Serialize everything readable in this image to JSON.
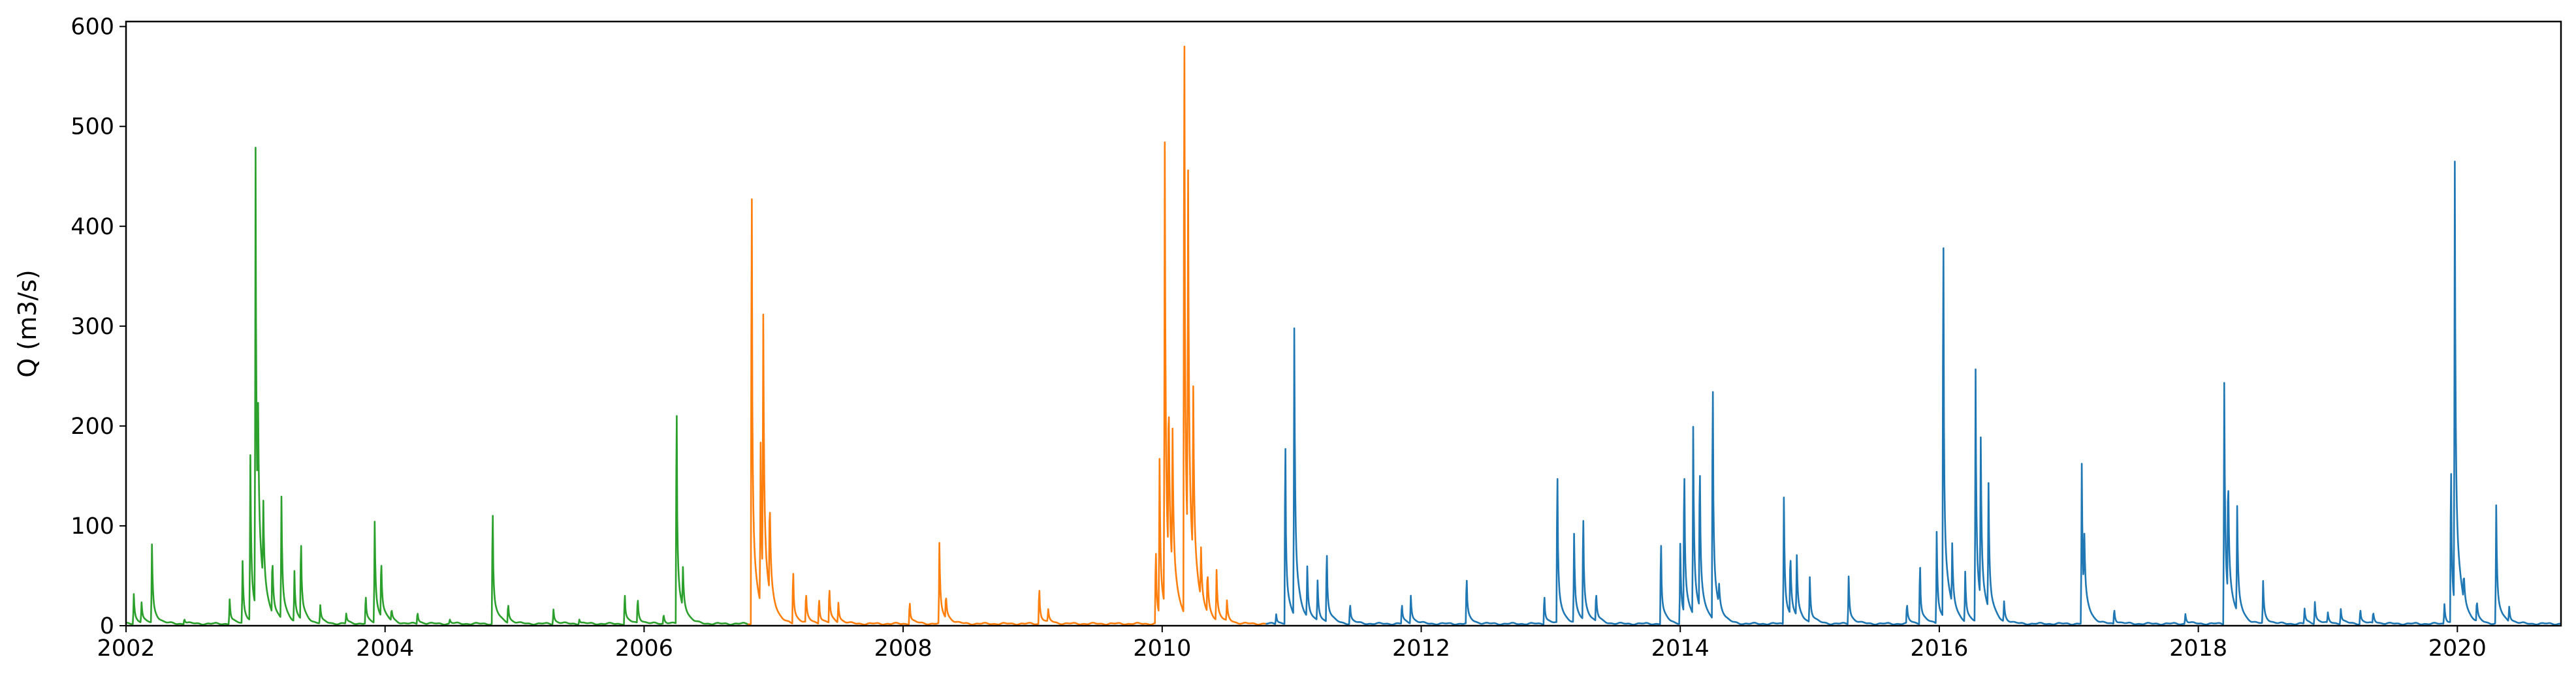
{
  "chart_data": {
    "type": "line",
    "title": "",
    "xlabel": "",
    "ylabel": "Q (m3/s)",
    "xlim": [
      2002.0,
      2020.8
    ],
    "ylim": [
      0,
      605
    ],
    "x_ticks": [
      "2002",
      "2004",
      "2006",
      "2008",
      "2010",
      "2012",
      "2014",
      "2016",
      "2018",
      "2020"
    ],
    "y_ticks": [
      "0",
      "100",
      "200",
      "300",
      "400",
      "500",
      "600"
    ],
    "grid": false,
    "series": [
      {
        "color": "#2ca02c",
        "baseline": 2,
        "x_start": 2002.0,
        "x_end": 2006.8,
        "events": [
          [
            2002.06,
            30
          ],
          [
            2002.12,
            20
          ],
          [
            2002.2,
            78
          ],
          [
            2002.45,
            6
          ],
          [
            2002.8,
            25
          ],
          [
            2002.9,
            62
          ],
          [
            2002.96,
            165
          ],
          [
            2003.0,
            458
          ],
          [
            2003.02,
            120
          ],
          [
            2003.06,
            78
          ],
          [
            2003.13,
            60
          ],
          [
            2003.2,
            122
          ],
          [
            2003.3,
            50
          ],
          [
            2003.35,
            80
          ],
          [
            2003.5,
            18
          ],
          [
            2003.7,
            10
          ],
          [
            2003.85,
            28
          ],
          [
            2003.92,
            101
          ],
          [
            2003.97,
            60
          ],
          [
            2004.05,
            12
          ],
          [
            2004.25,
            12
          ],
          [
            2004.5,
            4
          ],
          [
            2004.83,
            110
          ],
          [
            2004.95,
            20
          ],
          [
            2005.3,
            15
          ],
          [
            2005.5,
            5
          ],
          [
            2005.85,
            30
          ],
          [
            2005.95,
            25
          ],
          [
            2006.15,
            10
          ],
          [
            2006.25,
            210
          ],
          [
            2006.3,
            40
          ]
        ]
      },
      {
        "color": "#ff7f0e",
        "baseline": 2,
        "x_start": 2006.8,
        "x_end": 2010.8,
        "events": [
          [
            2006.83,
            427
          ],
          [
            2006.9,
            160
          ],
          [
            2006.92,
            265
          ],
          [
            2006.97,
            102
          ],
          [
            2007.15,
            52
          ],
          [
            2007.25,
            30
          ],
          [
            2007.35,
            25
          ],
          [
            2007.43,
            35
          ],
          [
            2007.5,
            20
          ],
          [
            2008.05,
            22
          ],
          [
            2008.28,
            80
          ],
          [
            2008.33,
            25
          ],
          [
            2009.05,
            35
          ],
          [
            2009.12,
            12
          ],
          [
            2009.95,
            72
          ],
          [
            2009.98,
            155
          ],
          [
            2010.02,
            462
          ],
          [
            2010.05,
            178
          ],
          [
            2010.08,
            138
          ],
          [
            2010.17,
            580
          ],
          [
            2010.2,
            370
          ],
          [
            2010.24,
            170
          ],
          [
            2010.3,
            50
          ],
          [
            2010.35,
            45
          ],
          [
            2010.42,
            50
          ],
          [
            2010.5,
            20
          ]
        ]
      },
      {
        "color": "#1f77b4",
        "baseline": 2,
        "x_start": 2010.8,
        "x_end": 2020.8,
        "events": [
          [
            2010.88,
            10
          ],
          [
            2010.95,
            177
          ],
          [
            2011.02,
            287
          ],
          [
            2011.12,
            50
          ],
          [
            2011.2,
            40
          ],
          [
            2011.27,
            70
          ],
          [
            2011.45,
            20
          ],
          [
            2011.85,
            20
          ],
          [
            2011.92,
            28
          ],
          [
            2012.35,
            45
          ],
          [
            2012.95,
            28
          ],
          [
            2013.05,
            147
          ],
          [
            2013.18,
            88
          ],
          [
            2013.25,
            105
          ],
          [
            2013.35,
            30
          ],
          [
            2013.85,
            80
          ],
          [
            2014.0,
            80
          ],
          [
            2014.03,
            147
          ],
          [
            2014.1,
            188
          ],
          [
            2014.15,
            150
          ],
          [
            2014.25,
            234
          ],
          [
            2014.3,
            20
          ],
          [
            2014.8,
            127
          ],
          [
            2014.85,
            65
          ],
          [
            2014.9,
            60
          ],
          [
            2015.0,
            45
          ],
          [
            2015.3,
            48
          ],
          [
            2015.75,
            20
          ],
          [
            2015.85,
            58
          ],
          [
            2015.98,
            92
          ],
          [
            2016.03,
            378
          ],
          [
            2016.1,
            60
          ],
          [
            2016.2,
            50
          ],
          [
            2016.28,
            252
          ],
          [
            2016.32,
            160
          ],
          [
            2016.38,
            125
          ],
          [
            2016.5,
            20
          ],
          [
            2017.1,
            160
          ],
          [
            2017.12,
            58
          ],
          [
            2017.35,
            15
          ],
          [
            2017.9,
            10
          ],
          [
            2018.2,
            242
          ],
          [
            2018.23,
            130
          ],
          [
            2018.3,
            105
          ],
          [
            2018.5,
            42
          ],
          [
            2018.82,
            15
          ],
          [
            2018.9,
            22
          ],
          [
            2019.0,
            10
          ],
          [
            2019.1,
            15
          ],
          [
            2019.25,
            15
          ],
          [
            2019.35,
            12
          ],
          [
            2019.9,
            20
          ],
          [
            2019.95,
            152
          ],
          [
            2019.98,
            441
          ],
          [
            2020.05,
            28
          ],
          [
            2020.15,
            22
          ],
          [
            2020.3,
            118
          ],
          [
            2020.4,
            15
          ]
        ]
      }
    ]
  }
}
